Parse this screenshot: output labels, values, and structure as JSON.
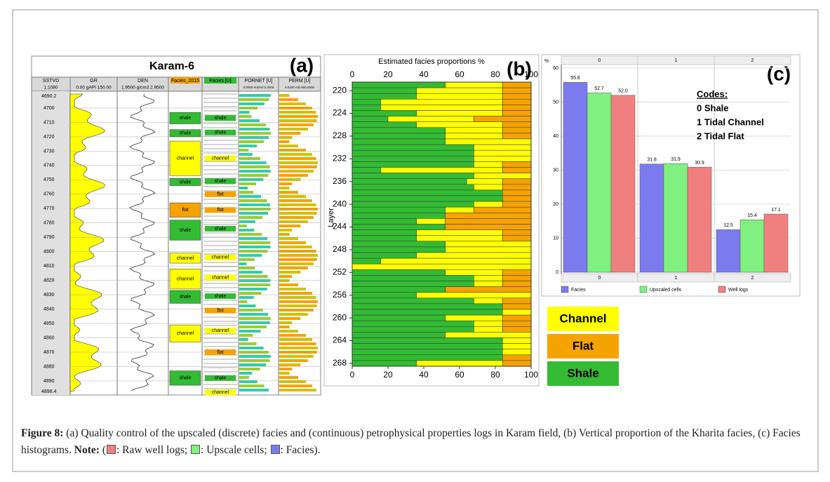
{
  "panel_a": {
    "title": "Karam-6",
    "tag": "(a)",
    "headers": [
      {
        "name": "SSTVD",
        "scale": "1:1080"
      },
      {
        "name": "GR",
        "scale": "0.00  gAPI  150.00"
      },
      {
        "name": "DEN",
        "scale": "1.9500  g/cm3  2.9500"
      },
      {
        "name": "Facies_2015",
        "scale": null
      },
      {
        "name": "Facies [U]",
        "scale": null
      },
      {
        "name": "PORNET [U]",
        "scale": "0.0000 m3/m3 0.2000"
      },
      {
        "name": "PERM [U]",
        "scale": "0.0100 mD 600.0000"
      }
    ],
    "depth_range": [
      4690.2,
      4898.4
    ],
    "depth_ticks": [
      4700,
      4710,
      4720,
      4730,
      4740,
      4750,
      4760,
      4770,
      4780,
      4790,
      4800,
      4810,
      4820,
      4830,
      4840,
      4850,
      4860,
      4870,
      4880,
      4890
    ],
    "facies_2015": [
      {
        "label": "shale",
        "top": 4703,
        "base": 4711
      },
      {
        "label": "shale",
        "top": 4715,
        "base": 4720
      },
      {
        "label": "channel",
        "top": 4723,
        "base": 4747
      },
      {
        "label": "shale",
        "top": 4749,
        "base": 4754
      },
      {
        "label": "flat",
        "top": 4766,
        "base": 4776
      },
      {
        "label": "shale",
        "top": 4778,
        "base": 4792
      },
      {
        "label": "channel",
        "top": 4801,
        "base": 4808
      },
      {
        "label": "channel",
        "top": 4812,
        "base": 4826
      },
      {
        "label": "shale",
        "top": 4827,
        "base": 4836
      },
      {
        "label": "channel",
        "top": 4851,
        "base": 4863
      },
      {
        "label": "shale",
        "top": 4883,
        "base": 4893
      }
    ],
    "facies_upscaled": [
      {
        "label": "shale",
        "depth": 4707
      },
      {
        "label": "shale",
        "depth": 4717
      },
      {
        "label": "channel",
        "depth": 4735
      },
      {
        "label": "shale",
        "depth": 4751
      },
      {
        "label": "flat",
        "depth": 4760
      },
      {
        "label": "flat",
        "depth": 4771
      },
      {
        "label": "shale",
        "depth": 4784
      },
      {
        "label": "channel",
        "depth": 4804
      },
      {
        "label": "channel",
        "depth": 4818
      },
      {
        "label": "shale",
        "depth": 4831
      },
      {
        "label": "flot",
        "depth": 4841
      },
      {
        "label": "channel",
        "depth": 4855
      },
      {
        "label": "flat",
        "depth": 4870
      },
      {
        "label": "shale",
        "depth": 4888
      },
      {
        "label": "channel",
        "depth": 4898
      }
    ]
  },
  "chart_data": [
    {
      "type": "stacked-hbar",
      "tag": "(b)",
      "title": "Estimated facies proportions %",
      "y_label": "Layer",
      "y": [
        219,
        220,
        221,
        222,
        223,
        224,
        225,
        226,
        227,
        228,
        229,
        230,
        231,
        232,
        233,
        234,
        235,
        236,
        237,
        238,
        239,
        240,
        241,
        242,
        243,
        244,
        245,
        246,
        247,
        248,
        249,
        250,
        251,
        252,
        253,
        254,
        255,
        256,
        257,
        258,
        259,
        260,
        261,
        262,
        263,
        264,
        265,
        266,
        267,
        268
      ],
      "ylim": [
        218.5,
        268.5
      ],
      "yticks": [
        220,
        224,
        228,
        232,
        236,
        240,
        244,
        248,
        252,
        256,
        260,
        264,
        268
      ],
      "xlim": [
        0,
        100
      ],
      "xticks": [
        0,
        20,
        40,
        60,
        80,
        100
      ],
      "series": [
        {
          "name": "Shale",
          "color": "#33bb33",
          "values": [
            52,
            36,
            36,
            16,
            16,
            36,
            20,
            36,
            52,
            52,
            52,
            68,
            68,
            68,
            68,
            16,
            68,
            64,
            68,
            84,
            84,
            68,
            52,
            52,
            36,
            52,
            36,
            36,
            52,
            52,
            36,
            16,
            0,
            52,
            68,
            68,
            52,
            36,
            68,
            84,
            84,
            52,
            68,
            68,
            52,
            84,
            84,
            84,
            84,
            36
          ]
        },
        {
          "name": "Channel",
          "color": "#ffff00",
          "values": [
            32,
            48,
            48,
            68,
            68,
            48,
            48,
            48,
            32,
            32,
            48,
            32,
            32,
            32,
            16,
            68,
            32,
            20,
            16,
            0,
            0,
            16,
            16,
            0,
            16,
            0,
            48,
            48,
            48,
            48,
            64,
            84,
            100,
            32,
            16,
            16,
            0,
            64,
            16,
            0,
            16,
            32,
            16,
            16,
            48,
            16,
            16,
            16,
            0,
            48
          ]
        },
        {
          "name": "Flat",
          "color": "#f5a300",
          "values": [
            16,
            16,
            16,
            16,
            16,
            16,
            32,
            16,
            16,
            16,
            0,
            0,
            0,
            0,
            16,
            16,
            0,
            16,
            16,
            16,
            16,
            16,
            32,
            48,
            48,
            48,
            16,
            16,
            0,
            0,
            0,
            0,
            0,
            16,
            16,
            16,
            48,
            0,
            16,
            16,
            0,
            16,
            16,
            16,
            0,
            0,
            0,
            0,
            16,
            16
          ]
        }
      ]
    },
    {
      "type": "grouped-bar",
      "tag": "(c)",
      "y_unit": "%",
      "categories": [
        "0",
        "1",
        "2"
      ],
      "ylim": [
        0,
        60
      ],
      "yticks": [
        0,
        10,
        20,
        30,
        40,
        50,
        60
      ],
      "grid": true,
      "annotation": [
        "Codes:",
        "0 Shale",
        "1 Tidal Channel",
        "2 Tidal Flat"
      ],
      "series": [
        {
          "name": "Facies",
          "color": "#7b7bef",
          "values": [
            55.8,
            31.8,
            12.5
          ]
        },
        {
          "name": "Upscaled cells",
          "color": "#80f080",
          "values": [
            52.7,
            31.9,
            15.4
          ]
        },
        {
          "name": "Well logs",
          "color": "#f08080",
          "values": [
            52.0,
            30.9,
            17.1
          ],
          "value_labels": [
            "52.0",
            "30.9",
            "17.1"
          ]
        }
      ]
    }
  ],
  "caption": {
    "label": "Figure 8:",
    "text": " (a) Quality control of the upscaled (discrete) facies and (continuous) petrophysical properties logs in Karam field, (b) Vertical proportion of the Kharita facies, (c) Facies histograms. ",
    "note_label": "Note:",
    "note_open": " (",
    "items": [
      ": Raw well logs; ",
      ": Upscale cells; ",
      ": Facies)."
    ]
  }
}
